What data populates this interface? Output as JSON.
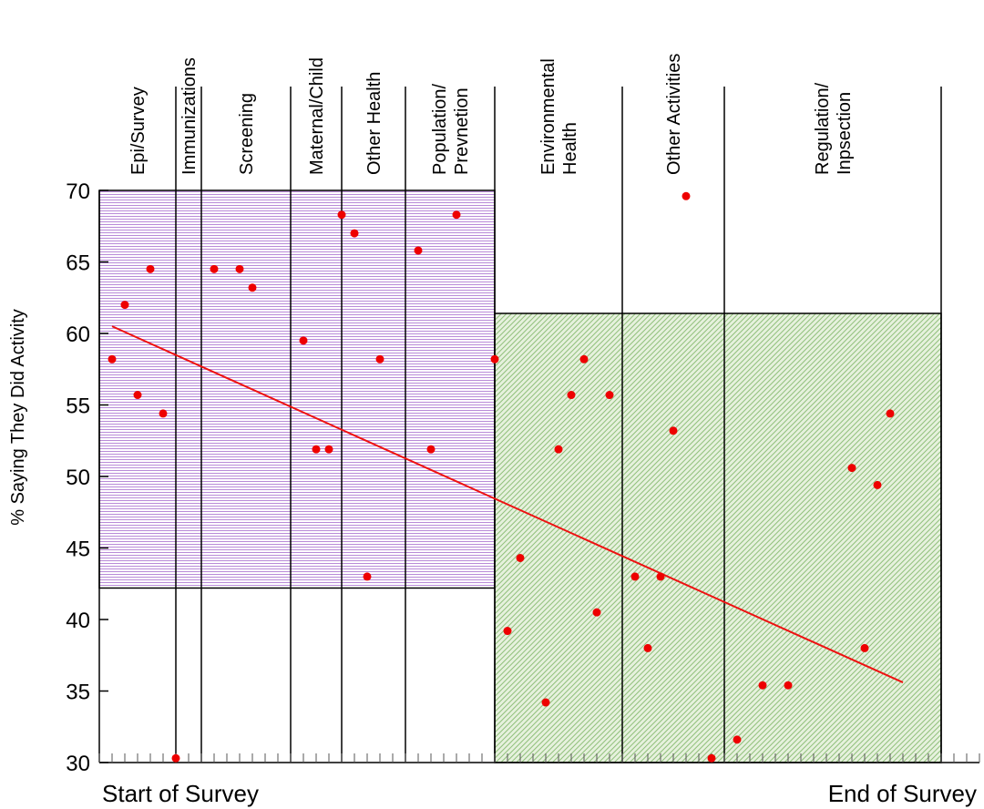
{
  "chart_data": {
    "type": "scatter",
    "title": "",
    "ylabel": "% Saying They Did Activity",
    "x_start_label": "Start of Survey",
    "x_end_label": "End of Survey",
    "ylim": [
      30,
      70
    ],
    "yticks": [
      30,
      35,
      40,
      45,
      50,
      55,
      60,
      65,
      70
    ],
    "xlim": [
      0,
      69
    ],
    "grid": false,
    "legend": "none",
    "colors": {
      "points": "#ee0000",
      "trend": "#ee1111",
      "region_left": "#c9a8e6",
      "region_right": "#b8d8a6",
      "lines": "#000000"
    },
    "categories": [
      {
        "lines": [
          "Epi/Survey"
        ],
        "x_start": 0,
        "x_end": 6
      },
      {
        "lines": [
          "Immunizations"
        ],
        "x_start": 6,
        "x_end": 8
      },
      {
        "lines": [
          "Screening"
        ],
        "x_start": 8,
        "x_end": 15
      },
      {
        "lines": [
          "Maternal/Child"
        ],
        "x_start": 15,
        "x_end": 19
      },
      {
        "lines": [
          "Other Health"
        ],
        "x_start": 19,
        "x_end": 24
      },
      {
        "lines": [
          "Population/",
          "Prevnetion"
        ],
        "x_start": 24,
        "x_end": 31
      },
      {
        "lines": [
          "Environmental",
          "Health"
        ],
        "x_start": 31,
        "x_end": 41
      },
      {
        "lines": [
          "Other Activities"
        ],
        "x_start": 41,
        "x_end": 49
      },
      {
        "lines": [
          "Regulation/",
          "Inpsection"
        ],
        "x_start": 49,
        "x_end": 66
      }
    ],
    "regions": [
      {
        "name": "left",
        "x_start": 0,
        "x_end": 31,
        "y_start": 42.2,
        "y_end": 70
      },
      {
        "name": "right",
        "x_start": 31,
        "x_end": 66,
        "y_start": 30,
        "y_end": 61.4
      }
    ],
    "points": [
      {
        "x": 1,
        "y": 58.2
      },
      {
        "x": 2,
        "y": 62
      },
      {
        "x": 3,
        "y": 55.7
      },
      {
        "x": 4,
        "y": 64.5
      },
      {
        "x": 5,
        "y": 54.4
      },
      {
        "x": 6,
        "y": 30.3
      },
      {
        "x": 9,
        "y": 64.5
      },
      {
        "x": 11,
        "y": 64.5
      },
      {
        "x": 12,
        "y": 63.2
      },
      {
        "x": 16,
        "y": 59.5
      },
      {
        "x": 17,
        "y": 51.9
      },
      {
        "x": 18,
        "y": 51.9
      },
      {
        "x": 19,
        "y": 68.3
      },
      {
        "x": 20,
        "y": 67
      },
      {
        "x": 21,
        "y": 43
      },
      {
        "x": 22,
        "y": 58.2
      },
      {
        "x": 25,
        "y": 65.8
      },
      {
        "x": 26,
        "y": 51.9
      },
      {
        "x": 28,
        "y": 68.3
      },
      {
        "x": 31,
        "y": 58.2
      },
      {
        "x": 32,
        "y": 39.2
      },
      {
        "x": 33,
        "y": 44.3
      },
      {
        "x": 35,
        "y": 34.2
      },
      {
        "x": 36,
        "y": 51.9
      },
      {
        "x": 37,
        "y": 55.7
      },
      {
        "x": 38,
        "y": 58.2
      },
      {
        "x": 39,
        "y": 40.5
      },
      {
        "x": 40,
        "y": 55.7
      },
      {
        "x": 42,
        "y": 43
      },
      {
        "x": 43,
        "y": 38
      },
      {
        "x": 44,
        "y": 43
      },
      {
        "x": 45,
        "y": 53.2
      },
      {
        "x": 46,
        "y": 69.6
      },
      {
        "x": 48,
        "y": 30.3
      },
      {
        "x": 50,
        "y": 31.6
      },
      {
        "x": 52,
        "y": 35.4
      },
      {
        "x": 54,
        "y": 35.4
      },
      {
        "x": 59,
        "y": 50.6
      },
      {
        "x": 60,
        "y": 38
      },
      {
        "x": 61,
        "y": 49.4
      },
      {
        "x": 62,
        "y": 54.4
      }
    ],
    "trend": {
      "x1": 1,
      "y1": 60.5,
      "x2": 63,
      "y2": 35.6
    }
  }
}
